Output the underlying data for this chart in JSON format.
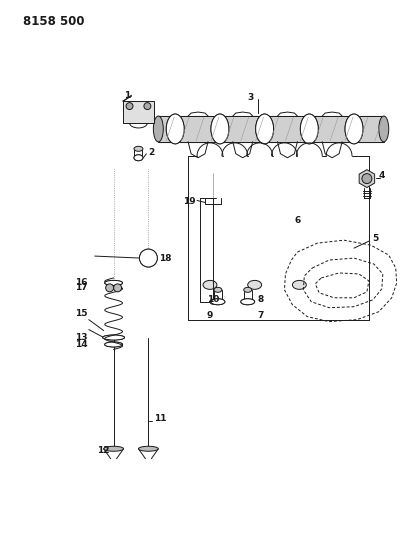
{
  "title": "8158 500",
  "bg_color": "#ffffff",
  "line_color": "#1a1a1a",
  "title_fontsize": 8.5,
  "label_fontsize": 6.5,
  "fig_width": 4.11,
  "fig_height": 5.33,
  "dpi": 100
}
